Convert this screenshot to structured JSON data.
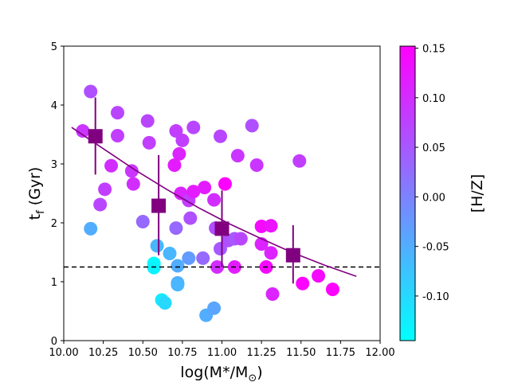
{
  "chart_data": {
    "type": "scatter",
    "xlabel": "log(M*/M",
    "xlabel_sub": "⊙",
    "xlabel_end": ")",
    "ylabel": "t",
    "ylabel_sub": "f",
    "ylabel_end": " (Gyr)",
    "xlim": [
      10.0,
      12.0
    ],
    "ylim": [
      0,
      5
    ],
    "x_ticks": [
      "10.00",
      "10.25",
      "10.50",
      "10.75",
      "11.00",
      "11.25",
      "11.50",
      "11.75",
      "12.00"
    ],
    "y_ticks": [
      "0",
      "1",
      "2",
      "3",
      "4",
      "5"
    ],
    "grid": false,
    "colorbar": {
      "label": "[H/Z]",
      "range": [
        -0.145,
        0.152
      ],
      "ticks": [
        "-0.10",
        "-0.05",
        "0.00",
        "0.05",
        "0.10",
        "0.15"
      ],
      "colormap": "cool",
      "color_low": "#00ffff",
      "color_high": "#ff00ff"
    },
    "points": [
      {
        "x": 10.17,
        "y": 4.23,
        "c": 0.06
      },
      {
        "x": 10.12,
        "y": 3.56,
        "c": 0.09
      },
      {
        "x": 10.34,
        "y": 3.87,
        "c": 0.07
      },
      {
        "x": 10.34,
        "y": 3.48,
        "c": 0.08
      },
      {
        "x": 10.53,
        "y": 3.73,
        "c": 0.07
      },
      {
        "x": 10.54,
        "y": 3.36,
        "c": 0.08
      },
      {
        "x": 10.3,
        "y": 2.97,
        "c": 0.1
      },
      {
        "x": 10.26,
        "y": 2.57,
        "c": 0.08
      },
      {
        "x": 10.23,
        "y": 2.31,
        "c": 0.07
      },
      {
        "x": 10.43,
        "y": 2.88,
        "c": 0.09
      },
      {
        "x": 10.44,
        "y": 2.66,
        "c": 0.1
      },
      {
        "x": 10.5,
        "y": 2.02,
        "c": 0.03
      },
      {
        "x": 10.17,
        "y": 1.9,
        "c": -0.05
      },
      {
        "x": 10.59,
        "y": 1.61,
        "c": -0.06
      },
      {
        "x": 10.67,
        "y": 1.48,
        "c": -0.06
      },
      {
        "x": 10.57,
        "y": 1.31,
        "c": -0.14
      },
      {
        "x": 10.57,
        "y": 1.24,
        "c": -0.13
      },
      {
        "x": 10.62,
        "y": 0.69,
        "c": -0.12
      },
      {
        "x": 10.64,
        "y": 0.64,
        "c": -0.1
      },
      {
        "x": 10.72,
        "y": 0.98,
        "c": -0.05
      },
      {
        "x": 10.72,
        "y": 0.95,
        "c": -0.06
      },
      {
        "x": 10.72,
        "y": 1.27,
        "c": -0.05
      },
      {
        "x": 10.71,
        "y": 1.91,
        "c": 0.03
      },
      {
        "x": 10.71,
        "y": 3.56,
        "c": 0.08
      },
      {
        "x": 10.73,
        "y": 3.17,
        "c": 0.11
      },
      {
        "x": 10.75,
        "y": 3.4,
        "c": 0.08
      },
      {
        "x": 10.82,
        "y": 3.62,
        "c": 0.07
      },
      {
        "x": 10.7,
        "y": 2.98,
        "c": 0.12
      },
      {
        "x": 10.74,
        "y": 2.5,
        "c": 0.11
      },
      {
        "x": 10.79,
        "y": 2.38,
        "c": 0.08
      },
      {
        "x": 10.82,
        "y": 2.53,
        "c": 0.12
      },
      {
        "x": 10.89,
        "y": 2.6,
        "c": 0.12
      },
      {
        "x": 10.8,
        "y": 2.08,
        "c": 0.06
      },
      {
        "x": 10.79,
        "y": 1.4,
        "c": -0.03
      },
      {
        "x": 10.88,
        "y": 1.4,
        "c": 0.03
      },
      {
        "x": 10.9,
        "y": 0.43,
        "c": -0.05
      },
      {
        "x": 10.95,
        "y": 0.55,
        "c": -0.04
      },
      {
        "x": 10.95,
        "y": 2.39,
        "c": 0.1
      },
      {
        "x": 10.96,
        "y": 1.91,
        "c": 0.06
      },
      {
        "x": 10.97,
        "y": 1.25,
        "c": 0.1
      },
      {
        "x": 10.99,
        "y": 1.56,
        "c": 0.05
      },
      {
        "x": 10.99,
        "y": 3.47,
        "c": 0.07
      },
      {
        "x": 11.02,
        "y": 2.66,
        "c": 0.15
      },
      {
        "x": 11.04,
        "y": 1.7,
        "c": 0.06
      },
      {
        "x": 11.08,
        "y": 1.73,
        "c": 0.05
      },
      {
        "x": 11.12,
        "y": 1.73,
        "c": 0.07
      },
      {
        "x": 11.08,
        "y": 1.25,
        "c": 0.12
      },
      {
        "x": 11.1,
        "y": 3.14,
        "c": 0.09
      },
      {
        "x": 11.19,
        "y": 3.65,
        "c": 0.06
      },
      {
        "x": 11.22,
        "y": 2.98,
        "c": 0.09
      },
      {
        "x": 11.25,
        "y": 1.94,
        "c": 0.14
      },
      {
        "x": 11.25,
        "y": 1.64,
        "c": 0.11
      },
      {
        "x": 11.28,
        "y": 1.25,
        "c": 0.14
      },
      {
        "x": 11.31,
        "y": 1.95,
        "c": 0.13
      },
      {
        "x": 11.31,
        "y": 1.49,
        "c": 0.11
      },
      {
        "x": 11.32,
        "y": 0.79,
        "c": 0.11
      },
      {
        "x": 11.49,
        "y": 3.05,
        "c": 0.08
      },
      {
        "x": 11.51,
        "y": 0.97,
        "c": 0.15
      },
      {
        "x": 11.61,
        "y": 1.1,
        "c": 0.14
      },
      {
        "x": 11.7,
        "y": 0.87,
        "c": 0.15
      }
    ],
    "binned_means": [
      {
        "x": 10.2,
        "y": 3.47,
        "yerr_low": 0.65,
        "yerr_high": 0.66
      },
      {
        "x": 10.6,
        "y": 2.29,
        "yerr_low": 0.84,
        "yerr_high": 0.86
      },
      {
        "x": 11.0,
        "y": 1.9,
        "yerr_low": 0.65,
        "yerr_high": 0.65
      },
      {
        "x": 11.45,
        "y": 1.45,
        "yerr_low": 0.48,
        "yerr_high": 0.51
      }
    ],
    "binned_color": "#800080",
    "fit_line": {
      "color": "#800080",
      "points": [
        [
          10.05,
          3.62
        ],
        [
          10.25,
          3.26
        ],
        [
          10.45,
          2.9
        ],
        [
          10.65,
          2.57
        ],
        [
          10.85,
          2.26
        ],
        [
          11.05,
          1.98
        ],
        [
          11.25,
          1.73
        ],
        [
          11.45,
          1.49
        ],
        [
          11.65,
          1.28
        ],
        [
          11.85,
          1.09
        ]
      ]
    },
    "reference_line": {
      "y": 1.25,
      "style": "dashed",
      "color": "#000000"
    }
  }
}
